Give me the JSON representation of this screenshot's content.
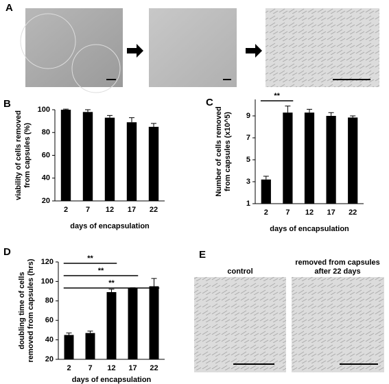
{
  "figure": {
    "panel_a": {
      "label": "A"
    },
    "panel_e": {
      "label": "E",
      "captions": [
        [
          "control"
        ],
        [
          "removed from capsules",
          "after 22 days"
        ]
      ]
    }
  },
  "chart_data": [
    {
      "type": "bar",
      "panel": "B",
      "categories": [
        "2",
        "7",
        "12",
        "17",
        "22"
      ],
      "values": [
        100,
        98,
        93,
        89,
        85
      ],
      "errors": [
        0.5,
        2,
        2,
        4,
        3
      ],
      "color": "#000000",
      "ylim": [
        20,
        100
      ],
      "yticks": [
        20,
        40,
        60,
        80,
        100
      ],
      "xlabel": "days of encapsulation",
      "ylabel": [
        "viability of cells removed",
        "from capsules (%)"
      ],
      "significance": []
    },
    {
      "type": "bar",
      "panel": "C",
      "categories": [
        "2",
        "7",
        "12",
        "17",
        "22"
      ],
      "values": [
        3.2,
        9.3,
        9.3,
        9.0,
        8.85
      ],
      "errors": [
        0.3,
        0.6,
        0.3,
        0.3,
        0.15
      ],
      "color": "#000000",
      "ylim": [
        1,
        10.5
      ],
      "yticks": [
        1,
        3,
        5,
        7,
        9
      ],
      "xlabel": "days of encapsulation",
      "ylabel": [
        "Number of cells removed",
        "from capsules (x10^5)"
      ],
      "significance": [
        {
          "from": 0,
          "to": 1,
          "label": "**"
        }
      ]
    },
    {
      "type": "bar",
      "panel": "D",
      "categories": [
        "2",
        "7",
        "12",
        "17",
        "22"
      ],
      "values": [
        45,
        47,
        89,
        93,
        95
      ],
      "errors": [
        2,
        2,
        3,
        0.5,
        8
      ],
      "color": "#000000",
      "ylim": [
        20,
        120
      ],
      "yticks": [
        20,
        40,
        60,
        80,
        100,
        120
      ],
      "xlabel": "days of encapsulation",
      "ylabel": [
        "doubling time of cells",
        "removed from capsules (hrs)"
      ],
      "significance": [
        {
          "from": 0,
          "to": 2,
          "label": "**"
        },
        {
          "from": 0,
          "to": 3,
          "label": "**"
        },
        {
          "from": 0,
          "to": 4,
          "label": "**"
        }
      ]
    }
  ]
}
